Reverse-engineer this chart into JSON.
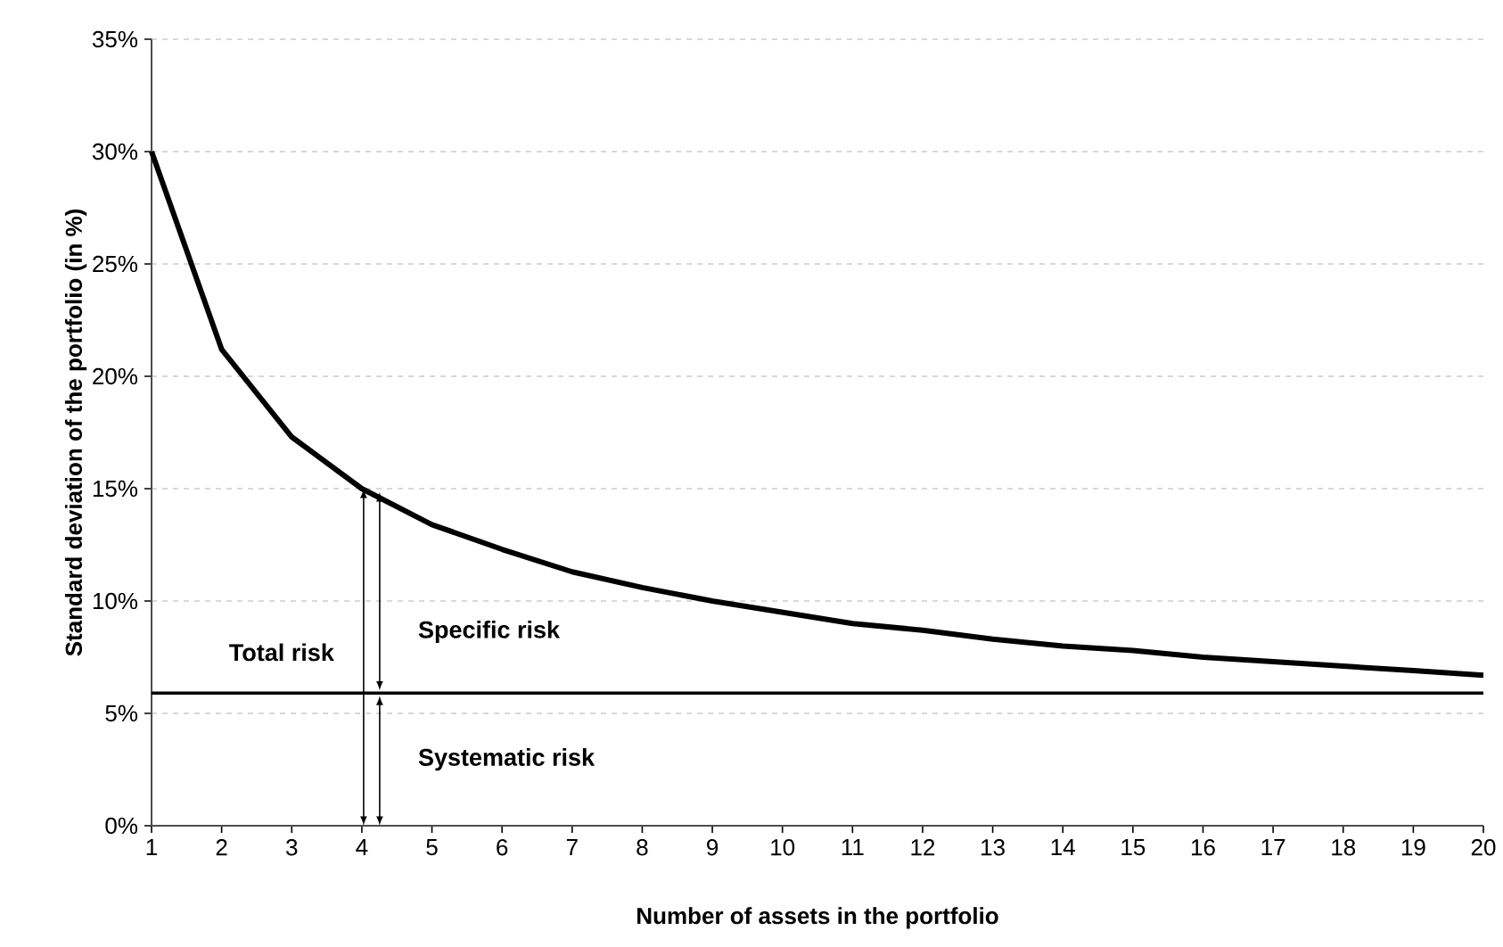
{
  "chart_data": {
    "type": "line",
    "xlabel": "Number of assets in the portfolio",
    "ylabel": "Standard deviation of the portfolio (in %)",
    "x": [
      1,
      2,
      3,
      4,
      5,
      6,
      7,
      8,
      9,
      10,
      11,
      12,
      13,
      14,
      15,
      16,
      17,
      18,
      19,
      20
    ],
    "series": [
      {
        "color": "#000000",
        "values": [
          30,
          21.2,
          17.3,
          15.0,
          13.4,
          12.3,
          11.3,
          10.6,
          10.0,
          9.5,
          9.0,
          8.7,
          8.3,
          8.0,
          7.8,
          7.5,
          7.3,
          7.1,
          6.9,
          6.7
        ]
      }
    ],
    "xlim": [
      1,
      20
    ],
    "xticks": [
      1,
      2,
      3,
      4,
      5,
      6,
      7,
      8,
      9,
      10,
      11,
      12,
      13,
      14,
      15,
      16,
      17,
      18,
      19,
      20
    ],
    "ylim": [
      0,
      35
    ],
    "yticks": [
      {
        "value": 0,
        "label": "0%"
      },
      {
        "value": 5,
        "label": "5%"
      },
      {
        "value": 10,
        "label": "10%"
      },
      {
        "value": 15,
        "label": "15%"
      },
      {
        "value": 20,
        "label": "20%"
      },
      {
        "value": 25,
        "label": "25%"
      },
      {
        "value": 30,
        "label": "30%"
      },
      {
        "value": 35,
        "label": "35%"
      }
    ],
    "grid": "y",
    "marker": "none",
    "line_style": "solid",
    "ref_lines": [
      {
        "axis": "y",
        "value": 5.9,
        "color": "#000000"
      }
    ],
    "annotations": [
      "Total risk",
      "Specific risk",
      "Systematic risk"
    ]
  }
}
